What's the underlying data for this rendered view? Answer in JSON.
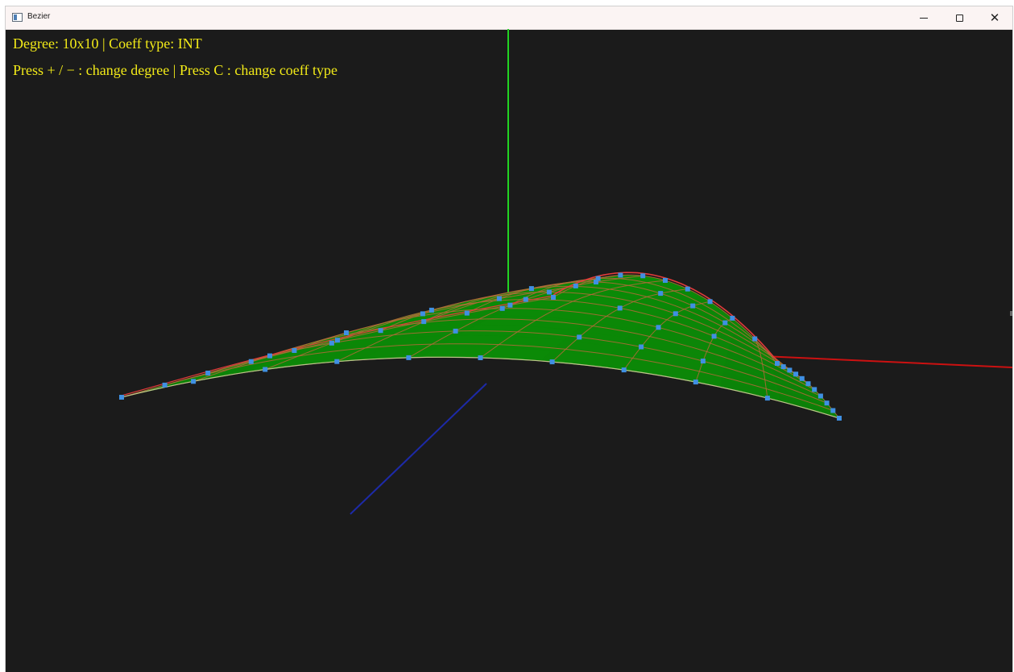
{
  "window": {
    "title": "Bezier",
    "controls": {
      "minimize": "–",
      "maximize": "□",
      "close": "✕"
    }
  },
  "hud": {
    "line1": "Degree: 10x10 | Coeff type: INT",
    "line2": "Press + / − : change degree | Press C : change coeff type"
  },
  "surface": {
    "degree_u": 10,
    "degree_v": 10,
    "coeff_type": "INT"
  },
  "colors": {
    "background": "#1b1b1b",
    "surface_fill": "#0b8a07",
    "surface_grid": "#b56a3a",
    "control_net": "#e23a3a",
    "control_points": "#3f90e3",
    "axis_x": "#cc1111",
    "axis_y": "#22d322",
    "axis_z": "#1d2aa8",
    "hud_text": "#f2ea18"
  },
  "icons": {
    "app": "window-app-icon",
    "minimize": "minimize-icon",
    "maximize": "maximize-icon",
    "close": "close-icon"
  }
}
